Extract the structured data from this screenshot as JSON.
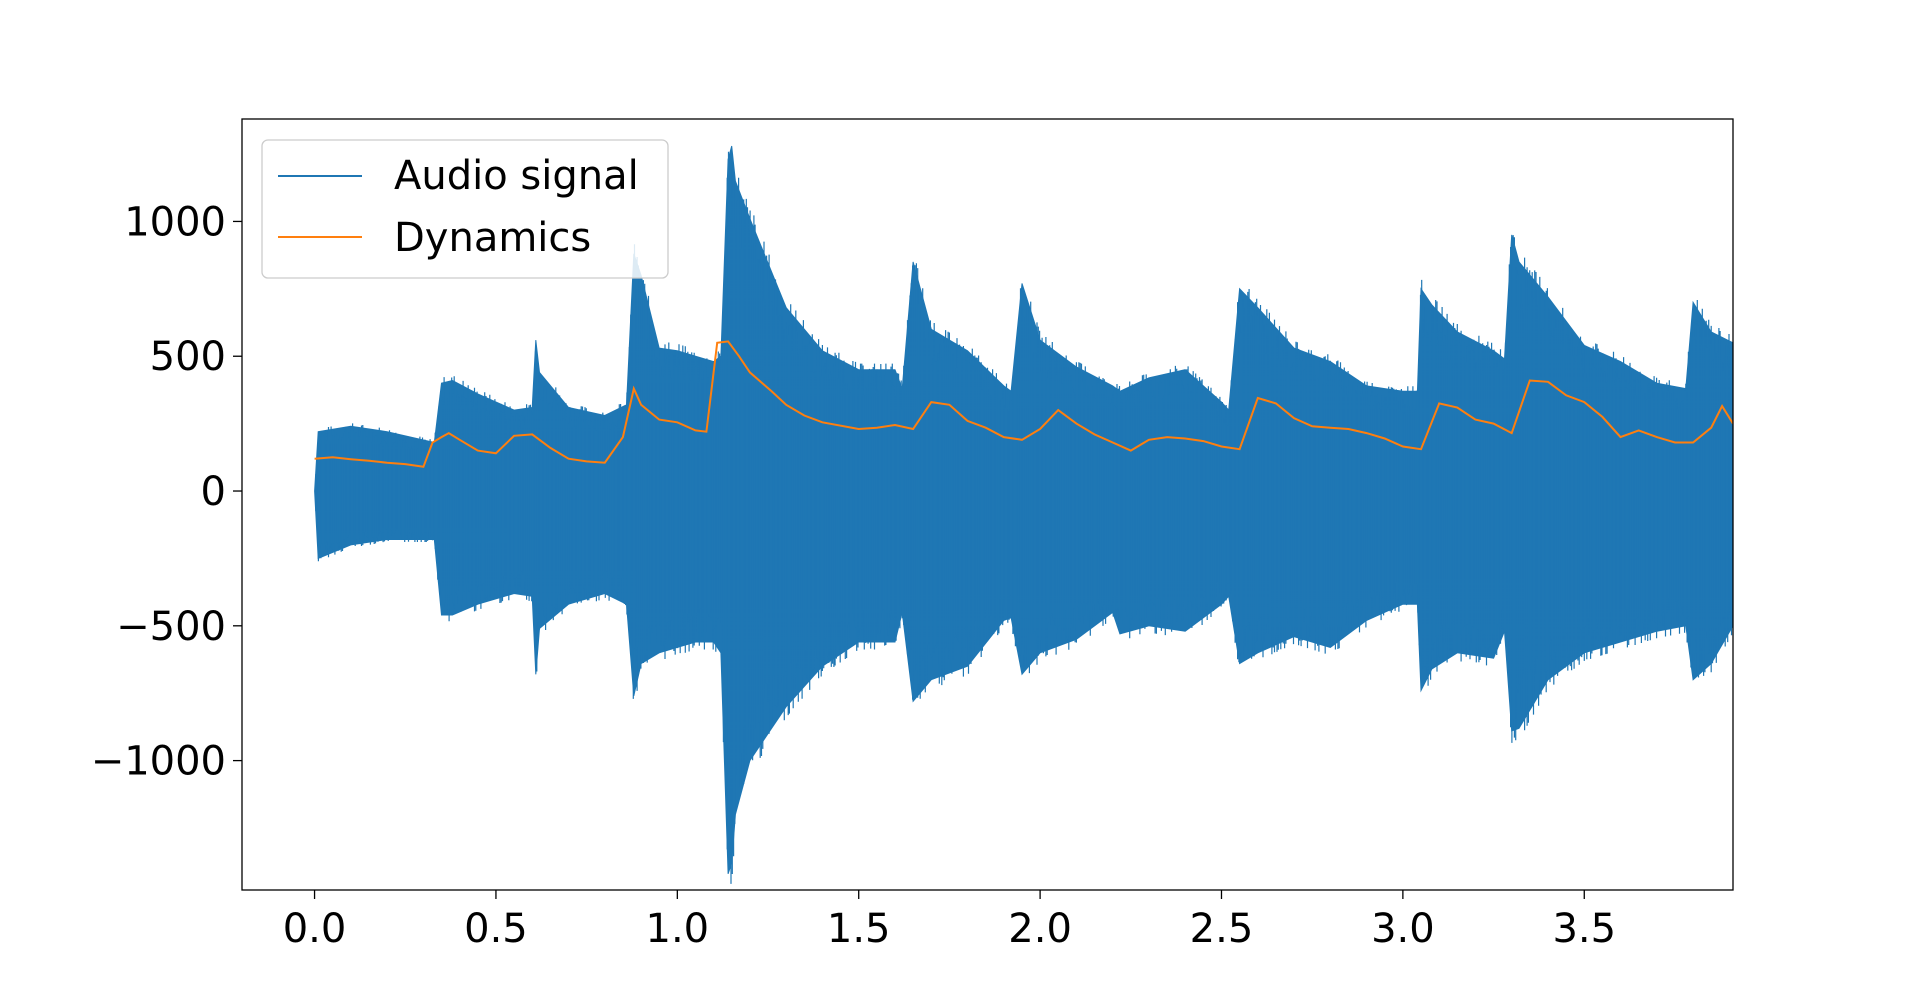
{
  "chart_data": {
    "type": "line",
    "title": "",
    "xlabel": "",
    "ylabel": "",
    "xlim": [
      -0.2,
      3.91
    ],
    "ylim": [
      -1480,
      1380
    ],
    "x_ticks": [
      0.0,
      0.5,
      1.0,
      1.5,
      2.0,
      2.5,
      3.0,
      3.5
    ],
    "x_tick_labels": [
      "0.0",
      "0.5",
      "1.0",
      "1.5",
      "2.0",
      "2.5",
      "3.0",
      "3.5"
    ],
    "y_ticks": [
      -1000,
      -500,
      0,
      500,
      1000
    ],
    "y_tick_labels": [
      "−1000",
      "−500",
      "0",
      "500",
      "1000"
    ],
    "grid": false,
    "legend_position": "top-left",
    "colors": {
      "audio": "#1f77b4",
      "dynamics": "#ff7f0e"
    },
    "series": [
      {
        "name": "Audio signal",
        "kind": "envelope",
        "x": [
          0.0,
          0.01,
          0.1,
          0.2,
          0.33,
          0.35,
          0.38,
          0.45,
          0.55,
          0.6,
          0.61,
          0.62,
          0.7,
          0.8,
          0.86,
          0.88,
          0.9,
          0.95,
          1.0,
          1.05,
          1.1,
          1.12,
          1.14,
          1.15,
          1.16,
          1.2,
          1.3,
          1.4,
          1.5,
          1.6,
          1.62,
          1.65,
          1.7,
          1.8,
          1.9,
          1.92,
          1.95,
          2.0,
          2.1,
          2.2,
          2.22,
          2.3,
          2.4,
          2.5,
          2.52,
          2.55,
          2.6,
          2.7,
          2.8,
          2.9,
          3.0,
          3.04,
          3.05,
          3.08,
          3.15,
          3.25,
          3.28,
          3.3,
          3.32,
          3.4,
          3.5,
          3.6,
          3.7,
          3.78,
          3.8,
          3.85,
          3.91
        ],
        "upper": [
          0,
          220,
          240,
          220,
          180,
          400,
          410,
          360,
          300,
          310,
          560,
          440,
          310,
          280,
          320,
          880,
          800,
          530,
          520,
          500,
          480,
          500,
          1230,
          1280,
          1150,
          1010,
          680,
          520,
          450,
          450,
          380,
          850,
          600,
          520,
          390,
          370,
          770,
          560,
          460,
          390,
          370,
          420,
          450,
          330,
          300,
          750,
          680,
          530,
          480,
          390,
          370,
          370,
          750,
          690,
          590,
          520,
          490,
          950,
          850,
          720,
          540,
          480,
          400,
          380,
          700,
          590,
          550
        ],
        "lower": [
          0,
          -250,
          -200,
          -180,
          -180,
          -460,
          -460,
          -420,
          -380,
          -390,
          -680,
          -510,
          -420,
          -380,
          -420,
          -760,
          -640,
          -600,
          -580,
          -560,
          -560,
          -600,
          -1420,
          -1380,
          -1200,
          -1000,
          -800,
          -650,
          -560,
          -560,
          -450,
          -780,
          -700,
          -650,
          -480,
          -470,
          -680,
          -600,
          -550,
          -450,
          -530,
          -500,
          -520,
          -420,
          -390,
          -640,
          -600,
          -540,
          -580,
          -480,
          -420,
          -420,
          -740,
          -660,
          -600,
          -620,
          -520,
          -890,
          -880,
          -700,
          -600,
          -560,
          -520,
          -500,
          -700,
          -640,
          -500
        ]
      },
      {
        "name": "Dynamics",
        "kind": "line",
        "x": [
          0.0,
          0.05,
          0.1,
          0.15,
          0.2,
          0.25,
          0.3,
          0.325,
          0.35,
          0.37,
          0.4,
          0.45,
          0.5,
          0.55,
          0.6,
          0.65,
          0.7,
          0.75,
          0.8,
          0.85,
          0.88,
          0.9,
          0.95,
          1.0,
          1.05,
          1.08,
          1.11,
          1.14,
          1.17,
          1.2,
          1.26,
          1.3,
          1.35,
          1.4,
          1.5,
          1.55,
          1.6,
          1.65,
          1.7,
          1.75,
          1.8,
          1.85,
          1.9,
          1.95,
          2.0,
          2.05,
          2.1,
          2.15,
          2.2,
          2.25,
          2.3,
          2.35,
          2.4,
          2.45,
          2.5,
          2.55,
          2.6,
          2.65,
          2.7,
          2.75,
          2.8,
          2.85,
          2.9,
          2.95,
          3.0,
          3.05,
          3.1,
          3.15,
          3.2,
          3.25,
          3.3,
          3.35,
          3.4,
          3.45,
          3.5,
          3.55,
          3.6,
          3.65,
          3.7,
          3.75,
          3.8,
          3.85,
          3.88,
          3.91
        ],
        "y": [
          120,
          125,
          118,
          112,
          105,
          100,
          90,
          180,
          200,
          215,
          190,
          150,
          140,
          205,
          210,
          160,
          120,
          110,
          105,
          200,
          380,
          320,
          265,
          255,
          225,
          220,
          550,
          555,
          500,
          440,
          370,
          320,
          280,
          255,
          230,
          235,
          245,
          230,
          330,
          320,
          260,
          235,
          200,
          190,
          230,
          300,
          250,
          210,
          180,
          150,
          190,
          200,
          195,
          185,
          165,
          155,
          345,
          325,
          270,
          240,
          235,
          230,
          215,
          195,
          165,
          155,
          325,
          310,
          265,
          250,
          215,
          410,
          405,
          355,
          330,
          275,
          200,
          225,
          200,
          180,
          180,
          235,
          315,
          250
        ]
      }
    ]
  }
}
